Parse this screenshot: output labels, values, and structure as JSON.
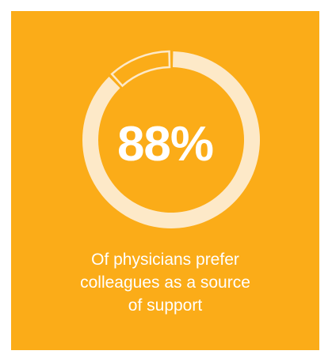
{
  "colors": {
    "card_background": "#fbac18",
    "ring_filled": "#fde9c8",
    "ring_remaining": "#fbac18",
    "text": "#ffffff"
  },
  "stat": {
    "percent_label": "88%",
    "caption_lines": [
      "Of physicians prefer",
      "colleagues as a source",
      "of support"
    ]
  },
  "chart_data": {
    "type": "pie",
    "style": "donut",
    "title": "",
    "values": [
      88,
      12
    ],
    "center_label": "88%"
  }
}
